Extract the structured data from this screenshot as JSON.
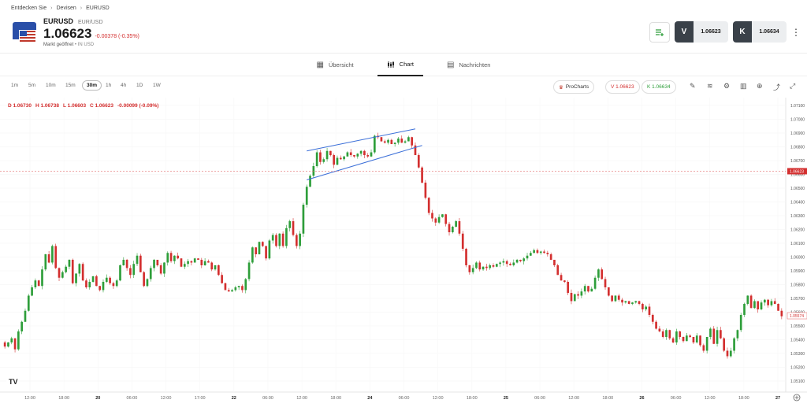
{
  "breadcrumb": [
    "Entdecken Sie",
    "Devisen",
    "EURUSD"
  ],
  "instrument": {
    "symbol": "EURUSD",
    "pair": "EUR/USD",
    "price": "1.06623",
    "change": "-0.00378 (-0.35%)",
    "market_status": "Markt geöffnet",
    "currency": "IN USD"
  },
  "trade": {
    "sell_label": "V",
    "sell_price": "1.06623",
    "buy_label": "K",
    "buy_price": "1.06634"
  },
  "tabs": [
    {
      "label": "Übersicht",
      "icon": "grid-icon"
    },
    {
      "label": "Chart",
      "icon": "candles-icon",
      "active": true
    },
    {
      "label": "Nachrichten",
      "icon": "news-icon"
    }
  ],
  "timeframes": [
    "1m",
    "5m",
    "10m",
    "15m",
    "30m",
    "1h",
    "4h",
    "1D",
    "1W"
  ],
  "active_timeframe": "30m",
  "prochart_label": "ProCharts",
  "pill_sell": "V 1.06623",
  "pill_buy": "K 1.06634",
  "ohlc": {
    "d": "D 1.06730",
    "h": "H 1.06738",
    "l": "L 1.06603",
    "c": "C 1.06623",
    "chg": "-0.00099 (-0.09%)"
  },
  "colors": {
    "up": "#2e9e3a",
    "down": "#d32f2f",
    "channel": "#3b6fd8",
    "price_line": "#e57373"
  },
  "chart_data": {
    "type": "candlestick",
    "y_axis_ticks": [
      "1.07100",
      "1.07000",
      "1.06900",
      "1.06800",
      "1.06700",
      "1.06600",
      "1.06500",
      "1.06400",
      "1.06300",
      "1.06200",
      "1.06100",
      "1.06000",
      "1.05900",
      "1.05800",
      "1.05700",
      "1.05600",
      "1.05500",
      "1.05400",
      "1.05300",
      "1.05200",
      "1.05100"
    ],
    "ylim": [
      1.0505,
      1.0713
    ],
    "x_axis_ticks": [
      "12:00",
      "18:00",
      "20",
      "06:00",
      "12:00",
      "17:00",
      "22",
      "06:00",
      "12:00",
      "18:00",
      "24",
      "06:00",
      "12:00",
      "18:00",
      "25",
      "06:00",
      "12:00",
      "18:00",
      "26",
      "06:00",
      "12:00",
      "18:00",
      "27"
    ],
    "current_price_label": "1.06623",
    "secondary_price_label": "1.05574",
    "closes": [
      1.0535,
      1.0538,
      1.0541,
      1.0533,
      1.0546,
      1.0553,
      1.0561,
      1.0572,
      1.0578,
      1.0583,
      1.0579,
      1.0591,
      1.0602,
      1.0596,
      1.0608,
      1.0592,
      1.0585,
      1.0589,
      1.0593,
      1.0598,
      1.0581,
      1.0588,
      1.0595,
      1.0583,
      1.0578,
      1.0582,
      1.0586,
      1.0579,
      1.0576,
      1.0582,
      1.0585,
      1.0581,
      1.0579,
      1.0583,
      1.0594,
      1.0598,
      1.0592,
      1.0587,
      1.0595,
      1.0601,
      1.0589,
      1.0579,
      1.0584,
      1.0592,
      1.0598,
      1.0594,
      1.0588,
      1.0596,
      1.0603,
      1.0597,
      1.0601,
      1.0599,
      1.0593,
      1.0595,
      1.0597,
      1.0596,
      1.0599,
      1.0598,
      1.0594,
      1.0597,
      1.0596,
      1.0591,
      1.0594,
      1.0587,
      1.0581,
      1.0576,
      1.0575,
      1.0576,
      1.0578,
      1.0579,
      1.0576,
      1.0584,
      1.0596,
      1.0607,
      1.0602,
      1.0611,
      1.0608,
      1.0599,
      1.0612,
      1.0616,
      1.0608,
      1.0617,
      1.0608,
      1.0621,
      1.0626,
      1.0616,
      1.0608,
      1.0617,
      1.0638,
      1.0651,
      1.0659,
      1.0666,
      1.0676,
      1.0669,
      1.0671,
      1.0677,
      1.0674,
      1.0667,
      1.0672,
      1.0671,
      1.0673,
      1.0676,
      1.0674,
      1.0673,
      1.0675,
      1.0677,
      1.0674,
      1.0673,
      1.0676,
      1.0688,
      1.0687,
      1.0684,
      1.0683,
      1.0685,
      1.0682,
      1.0683,
      1.0686,
      1.0683,
      1.0684,
      1.0687,
      1.0681,
      1.0674,
      1.0665,
      1.0654,
      1.0643,
      1.0632,
      1.0628,
      1.0625,
      1.0629,
      1.0631,
      1.0624,
      1.0618,
      1.0622,
      1.0626,
      1.0617,
      1.0606,
      1.0594,
      1.0589,
      1.0592,
      1.0596,
      1.0591,
      1.0593,
      1.0592,
      1.0594,
      1.0593,
      1.0595,
      1.0596,
      1.0597,
      1.0595,
      1.0594,
      1.0596,
      1.0598,
      1.0597,
      1.0599,
      1.0601,
      1.0603,
      1.0605,
      1.0603,
      1.0604,
      1.0603,
      1.0602,
      1.0598,
      1.0594,
      1.0587,
      1.0583,
      1.0582,
      1.0574,
      1.0568,
      1.0573,
      1.0572,
      1.0575,
      1.0579,
      1.0575,
      1.0577,
      1.0585,
      1.0591,
      1.0584,
      1.0578,
      1.0572,
      1.0568,
      1.0572,
      1.0569,
      1.0567,
      1.0568,
      1.0566,
      1.0567,
      1.0568,
      1.0566,
      1.0562,
      1.0564,
      1.0558,
      1.0553,
      1.0548,
      1.0546,
      1.0542,
      1.0547,
      1.0541,
      1.0538,
      1.0546,
      1.0542,
      1.0539,
      1.0543,
      1.0542,
      1.0538,
      1.0543,
      1.0536,
      1.0532,
      1.0542,
      1.0548,
      1.0537,
      1.0547,
      1.0541,
      1.0532,
      1.0528,
      1.0532,
      1.0541,
      1.0547,
      1.0558,
      1.0566,
      1.0572,
      1.0563,
      1.0568,
      1.0562,
      1.0567,
      1.0569,
      1.0565,
      1.0568,
      1.0566,
      1.0561,
      1.0557
    ]
  }
}
